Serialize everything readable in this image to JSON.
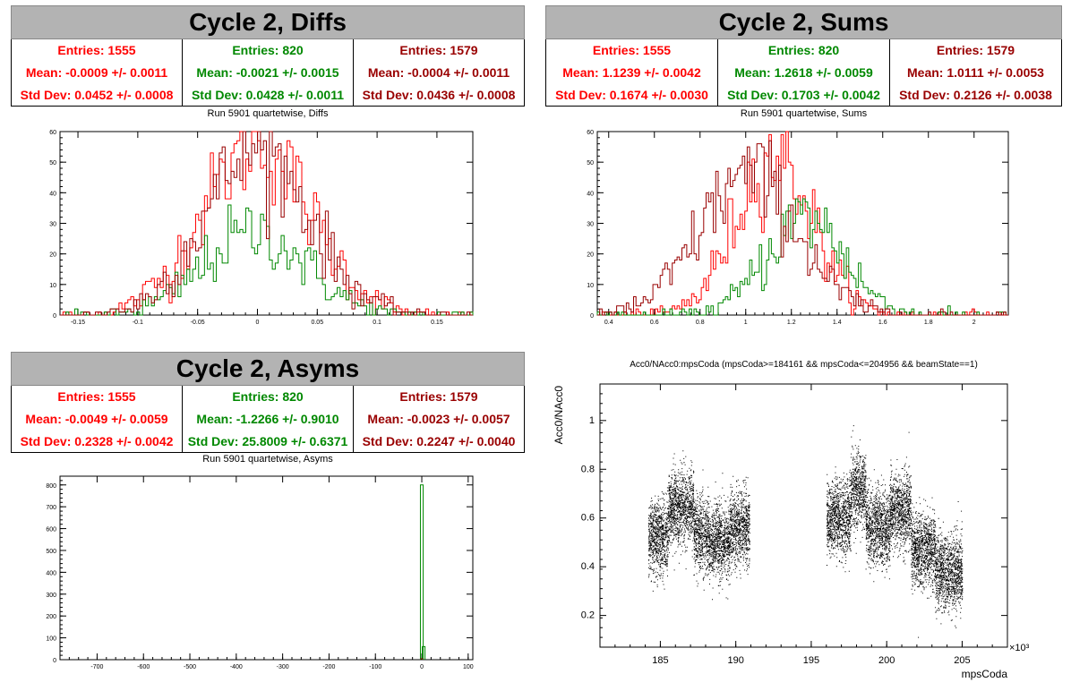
{
  "colors": {
    "red": "#ff0000",
    "green": "#008800",
    "darkred": "#990000",
    "title_bg": "#b3b3b3"
  },
  "panels": {
    "diffs": {
      "title": "Cycle 2, Diffs",
      "subtitle": "Run 5901 quartetwise, Diffs",
      "stats": [
        {
          "entries": "Entries: 1555",
          "mean": "Mean: -0.0009 +/- 0.0011",
          "std": "Std Dev: 0.0452 +/- 0.0008"
        },
        {
          "entries": "Entries: 820",
          "mean": "Mean: -0.0021 +/- 0.0015",
          "std": "Std Dev: 0.0428 +/- 0.0011"
        },
        {
          "entries": "Entries: 1579",
          "mean": "Mean: -0.0004 +/- 0.0011",
          "std": "Std Dev: 0.0436 +/- 0.0008"
        }
      ]
    },
    "sums": {
      "title": "Cycle 2, Sums",
      "subtitle": "Run 5901 quartetwise, Sums",
      "stats": [
        {
          "entries": "Entries: 1555",
          "mean": "Mean: 1.1239 +/- 0.0042",
          "std": "Std Dev: 0.1674 +/- 0.0030"
        },
        {
          "entries": "Entries: 820",
          "mean": "Mean: 1.2618 +/- 0.0059",
          "std": "Std Dev: 0.1703 +/- 0.0042"
        },
        {
          "entries": "Entries: 1579",
          "mean": "Mean: 1.0111 +/- 0.0053",
          "std": "Std Dev: 0.2126 +/- 0.0038"
        }
      ]
    },
    "asyms": {
      "title": "Cycle 2, Asyms",
      "subtitle": "Run 5901 quartetwise, Asyms",
      "stats": [
        {
          "entries": "Entries: 1555",
          "mean": "Mean: -0.0049 +/- 0.0059",
          "std": "Std Dev: 0.2328 +/- 0.0042"
        },
        {
          "entries": "Entries: 820",
          "mean": "Mean: -1.2266 +/- 0.9010",
          "std": "Std Dev: 25.8009 +/- 0.6371"
        },
        {
          "entries": "Entries: 1579",
          "mean": "Mean: -0.0023 +/- 0.0057",
          "std": "Std Dev: 0.2247 +/- 0.0040"
        }
      ]
    },
    "scatter": {
      "title": "Acc0/NAcc0:mpsCoda (mpsCoda>=184161 && mpsCoda<=204956 && beamState==1)"
    }
  },
  "chart_data": [
    {
      "type": "bar",
      "name": "diffs",
      "xlim": [
        -0.165,
        0.18
      ],
      "ylim": [
        0,
        60
      ],
      "xticks": [
        "-0.15",
        "-0.1",
        "-0.05",
        "0",
        "0.05",
        "0.1",
        "0.15"
      ],
      "xtick_values": [
        -0.15,
        -0.1,
        -0.05,
        0,
        0.05,
        0.1,
        0.15
      ],
      "yticks": [
        "0",
        "10",
        "20",
        "30",
        "40",
        "50",
        "60"
      ],
      "series": [
        {
          "color": "#ff0000",
          "mean": -0.0009,
          "std": 0.0452,
          "peak": 55
        },
        {
          "color": "#008800",
          "mean": -0.0021,
          "std": 0.0428,
          "peak": 27
        },
        {
          "color": "#990000",
          "mean": -0.0004,
          "std": 0.0436,
          "peak": 54
        }
      ]
    },
    {
      "type": "bar",
      "name": "sums",
      "xlim": [
        0.35,
        2.15
      ],
      "ylim": [
        0,
        60
      ],
      "xticks": [
        "0.4",
        "0.6",
        "0.8",
        "1",
        "1.2",
        "1.4",
        "1.6",
        "1.8",
        "2"
      ],
      "xtick_values": [
        0.4,
        0.6,
        0.8,
        1,
        1.2,
        1.4,
        1.6,
        1.8,
        2
      ],
      "yticks": [
        "0",
        "10",
        "20",
        "30",
        "40",
        "50",
        "60"
      ],
      "series": [
        {
          "color": "#ff0000",
          "mean": 1.1239,
          "std": 0.1674,
          "peak": 52
        },
        {
          "color": "#008800",
          "mean": 1.2618,
          "std": 0.1703,
          "peak": 32
        },
        {
          "color": "#990000",
          "mean": 1.0111,
          "std": 0.2126,
          "peak": 46
        }
      ]
    },
    {
      "type": "bar",
      "name": "asyms",
      "xlim": [
        -780,
        110
      ],
      "ylim": [
        0,
        840
      ],
      "xticks": [
        "-700",
        "-600",
        "-500",
        "-400",
        "-300",
        "-200",
        "-100",
        "0",
        "100"
      ],
      "xtick_values": [
        -700,
        -600,
        -500,
        -400,
        -300,
        -200,
        -100,
        0,
        100
      ],
      "yticks": [
        "0",
        "100",
        "200",
        "300",
        "400",
        "500",
        "600",
        "700",
        "800"
      ],
      "spikes": [
        {
          "color": "#008800",
          "x": 0,
          "value": 800
        },
        {
          "color": "#008800",
          "x": 4,
          "value": 60
        }
      ]
    },
    {
      "type": "scatter",
      "name": "acc0_vs_mpscoda",
      "xlabel": "mpsCoda",
      "ylabel": "Acc0/NAcc0",
      "xexp": "×10³",
      "xlim": [
        181,
        208
      ],
      "ylim": [
        0.07,
        1.15
      ],
      "xticks": [
        "185",
        "190",
        "195",
        "200",
        "205"
      ],
      "xtick_values": [
        185,
        190,
        195,
        200,
        205
      ],
      "yticks": [
        "0.2",
        "0.4",
        "0.6",
        "0.8",
        "1"
      ],
      "ytick_values": [
        0.2,
        0.4,
        0.6,
        0.8,
        1
      ],
      "clusters": [
        {
          "x0": 184.2,
          "x1": 185.5,
          "y": 0.52
        },
        {
          "x0": 185.5,
          "x1": 187.2,
          "y": 0.64
        },
        {
          "x0": 187.2,
          "x1": 188.2,
          "y": 0.53
        },
        {
          "x0": 188.2,
          "x1": 189.6,
          "y": 0.5
        },
        {
          "x0": 189.6,
          "x1": 190.9,
          "y": 0.56
        },
        {
          "x0": 196.0,
          "x1": 197.6,
          "y": 0.6
        },
        {
          "x0": 197.6,
          "x1": 198.6,
          "y": 0.71
        },
        {
          "x0": 198.6,
          "x1": 200.2,
          "y": 0.56
        },
        {
          "x0": 200.2,
          "x1": 201.6,
          "y": 0.63
        },
        {
          "x0": 201.6,
          "x1": 203.2,
          "y": 0.47
        },
        {
          "x0": 203.2,
          "x1": 205.0,
          "y": 0.38
        }
      ]
    }
  ]
}
